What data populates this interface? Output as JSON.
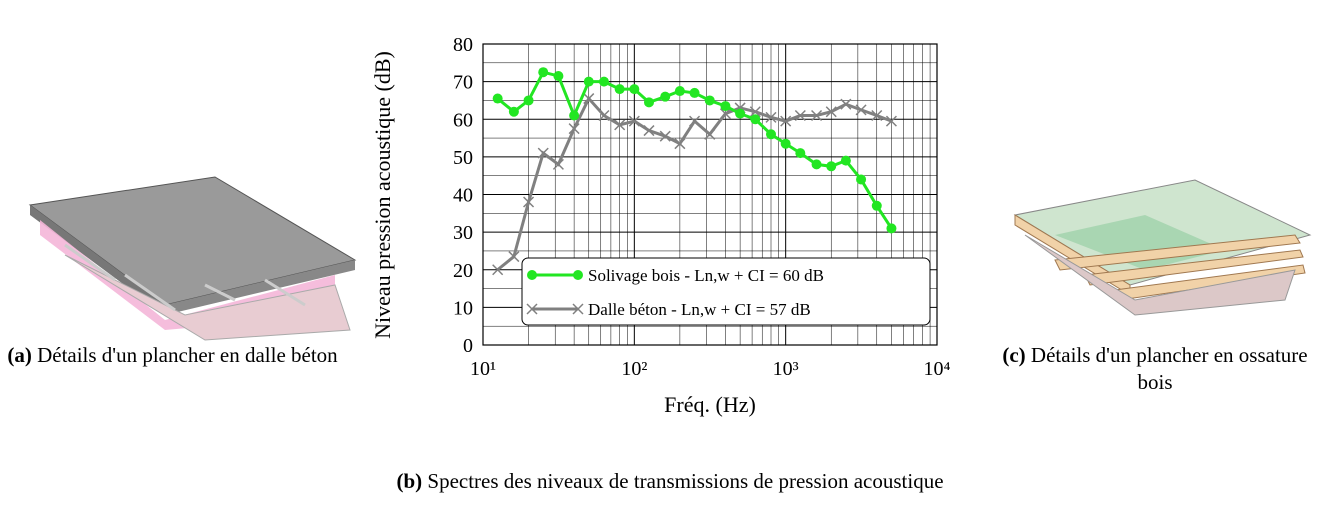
{
  "chart_data": {
    "type": "line",
    "x_label": "Fréq. (Hz)",
    "y_label": "Niveau pression acoustique (dB)",
    "x": [
      12.5,
      16,
      20,
      25,
      31.5,
      40,
      50,
      63,
      80,
      100,
      125,
      160,
      200,
      250,
      315,
      400,
      500,
      630,
      800,
      1000,
      1250,
      1600,
      2000,
      2500,
      3150,
      4000,
      5000
    ],
    "series": [
      {
        "name": "Solivage bois - Ln,w + CI = 60 dB",
        "color": "#22e622",
        "marker": "circle",
        "values": [
          65.5,
          62,
          65,
          72.5,
          71.5,
          61,
          70,
          70,
          68,
          68,
          64.5,
          66,
          67.5,
          67,
          65,
          63.5,
          61.5,
          60,
          56,
          53.5,
          51,
          48,
          47.5,
          49,
          44,
          37,
          31
        ]
      },
      {
        "name": "Dalle béton - Ln,w + CI = 57 dB",
        "color": "#808080",
        "marker": "x",
        "values": [
          20,
          23.5,
          38,
          51,
          48,
          57.5,
          65.5,
          61,
          58.5,
          59.5,
          57,
          55.5,
          53.5,
          59.5,
          56,
          61.5,
          63,
          62,
          60.5,
          59.5,
          61,
          61,
          62,
          64,
          62.5,
          61,
          59.5
        ]
      }
    ],
    "xlim": [
      10,
      10000
    ],
    "log_x": true,
    "xticks": [
      {
        "value": 10,
        "label": "10¹"
      },
      {
        "value": 100,
        "label": "10²"
      },
      {
        "value": 1000,
        "label": "10³"
      },
      {
        "value": 10000,
        "label": "10⁴"
      }
    ],
    "ylim": [
      0,
      80
    ],
    "yticks": [
      0,
      10,
      20,
      30,
      40,
      50,
      60,
      70,
      80
    ],
    "grid": true,
    "legend": "lower right"
  },
  "captions": {
    "a": {
      "label": "(a)",
      "text": "Détails d'un plancher en dalle béton"
    },
    "b": {
      "label": "(b)",
      "text": "Spectres des niveaux de transmissions de pression acoustique"
    },
    "c": {
      "label": "(c)",
      "text": "Détails d'un plancher en ossature bois"
    }
  }
}
